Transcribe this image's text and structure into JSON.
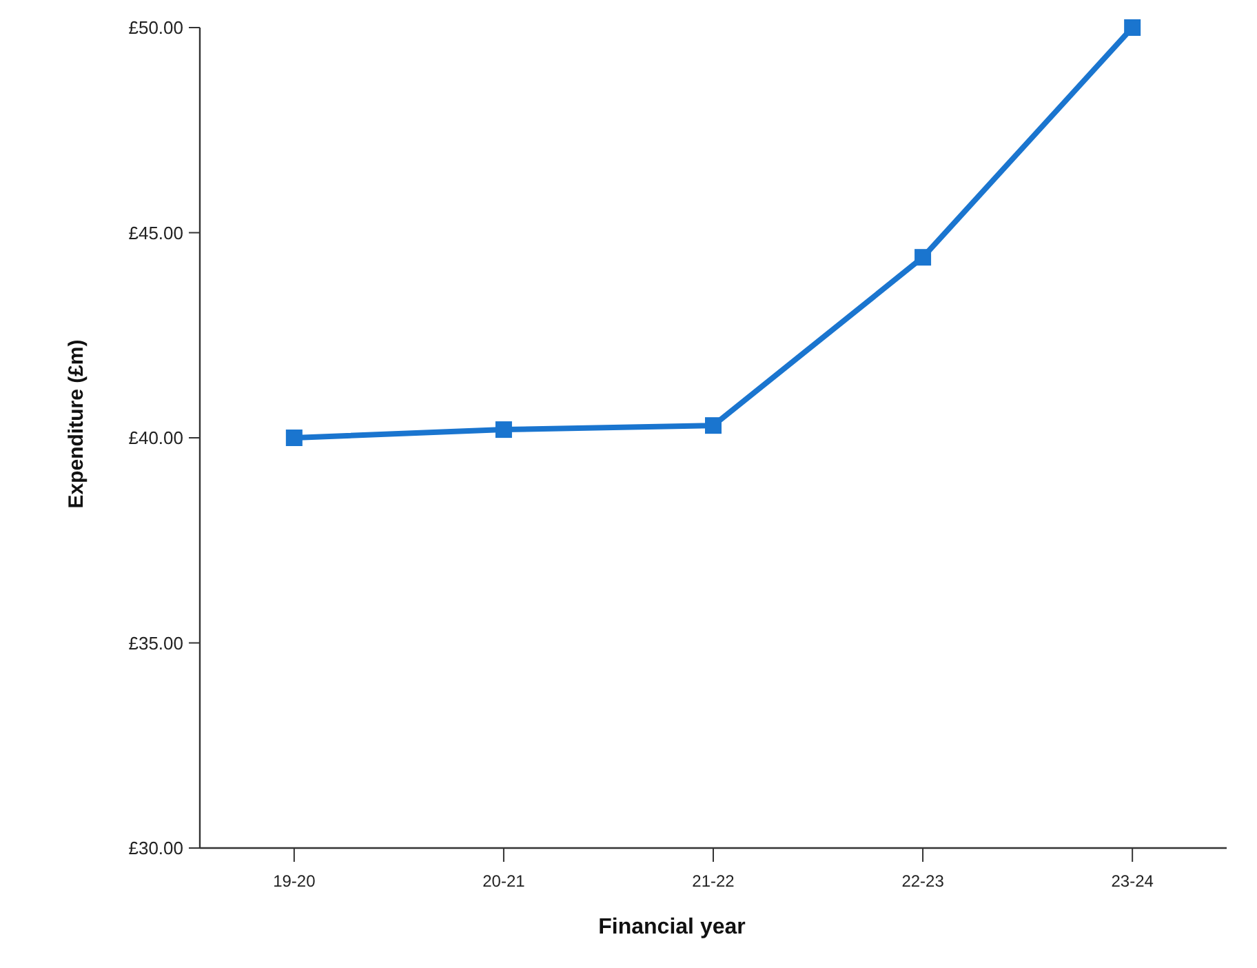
{
  "chart_data": {
    "type": "line",
    "xlabel": "Financial year",
    "ylabel": "Expenditure (£m)",
    "categories": [
      "19-20",
      "20-21",
      "21-22",
      "22-23",
      "23-24"
    ],
    "series": [
      {
        "color": "#1a75cf",
        "values": [
          40.0,
          40.2,
          40.3,
          44.4,
          50.0
        ]
      }
    ],
    "ylim": [
      30,
      50
    ],
    "yticks": [
      {
        "value": 30,
        "label": "£30.00"
      },
      {
        "value": 35,
        "label": "£35.00"
      },
      {
        "value": 40,
        "label": "£40.00"
      },
      {
        "value": 45,
        "label": "£45.00"
      },
      {
        "value": 50,
        "label": "£50.00"
      }
    ],
    "grid": false,
    "marker": "square",
    "line_style": "solid"
  }
}
